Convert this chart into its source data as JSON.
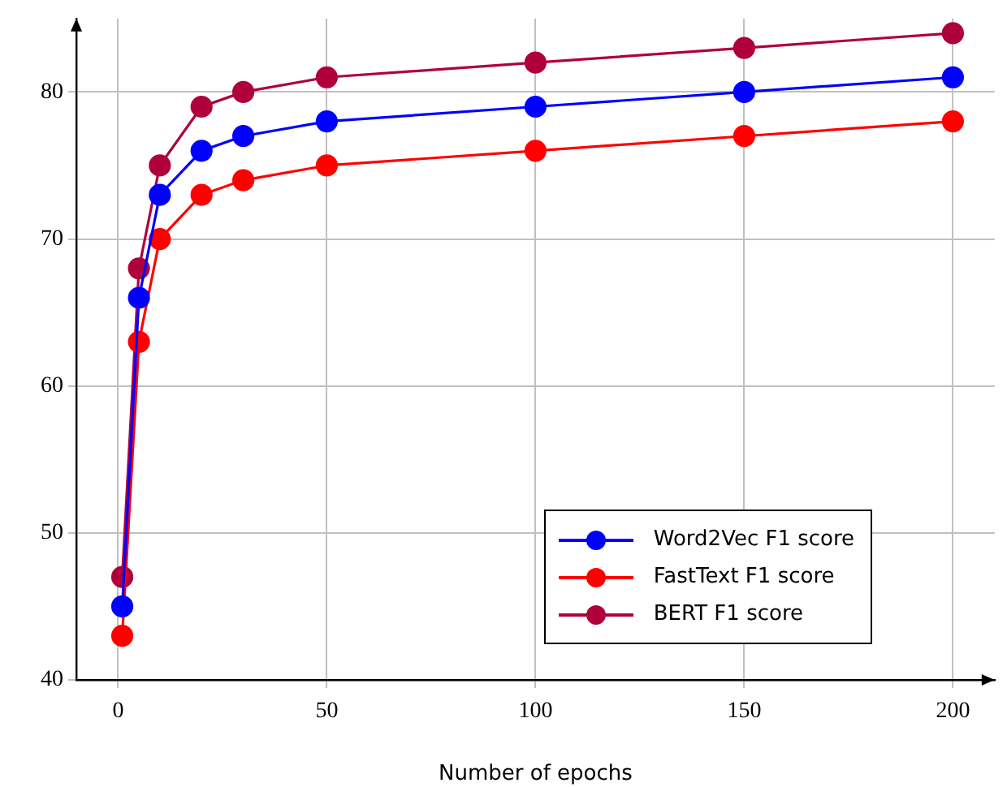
{
  "chart_data": {
    "type": "line",
    "xlabel": "Number of epochs",
    "x": [
      1,
      5,
      10,
      20,
      30,
      50,
      100,
      150,
      200
    ],
    "series": [
      {
        "name": "Word2Vec F1 score",
        "color": "#0000ff",
        "values": [
          45,
          66,
          73,
          76,
          77,
          78,
          79,
          80,
          81
        ]
      },
      {
        "name": "FastText F1 score",
        "color": "#ff0000",
        "values": [
          43,
          63,
          70,
          73,
          74,
          75,
          76,
          77,
          78
        ]
      },
      {
        "name": "BERT F1 score",
        "color": "#b0003c",
        "values": [
          47,
          68,
          75,
          79,
          80,
          81,
          82,
          83,
          84
        ]
      }
    ],
    "xlim": [
      -10,
      210
    ],
    "xticks": [
      0,
      50,
      100,
      150,
      200
    ],
    "ylim": [
      40,
      85
    ],
    "yticks": [
      40,
      50,
      60,
      70,
      80
    ],
    "grid": true,
    "legend": "bottom right",
    "marker": "circle",
    "line_style": "solid"
  }
}
